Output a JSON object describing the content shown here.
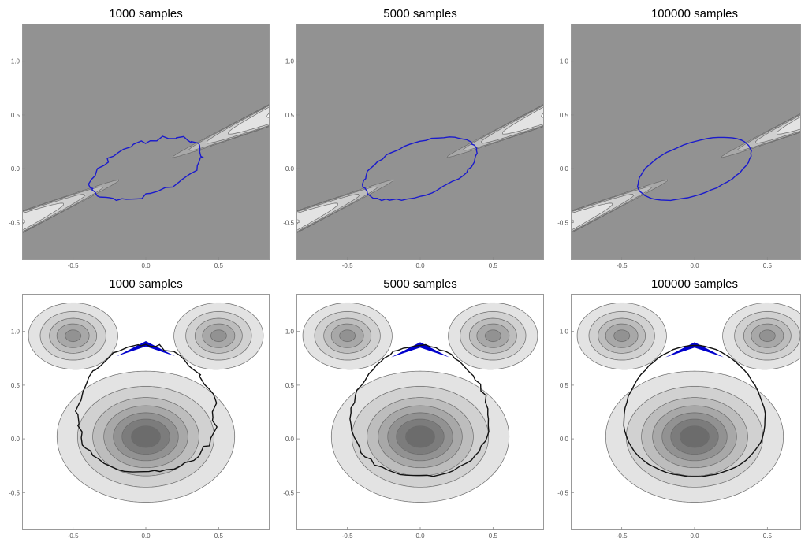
{
  "chart_data": [
    {
      "type": "contour",
      "title": "1000 samples",
      "distribution": "correlated-gaussian",
      "xlim": [
        -0.85,
        0.85
      ],
      "ylim": [
        -0.85,
        1.35
      ],
      "x_ticks": [
        -0.5,
        0.0,
        0.5
      ],
      "x_tick_labels": [
        "-0.5",
        "0.0",
        "0.5"
      ],
      "y_ticks": [
        -0.5,
        0.0,
        0.5,
        1.0
      ],
      "y_tick_labels": [
        "-0.5",
        "0.0",
        "0.5",
        "1.0"
      ],
      "contour_levels": 5,
      "curve": {
        "type": "ellipse",
        "cx": 0.0,
        "cy": 0.0,
        "rx": 0.42,
        "ry": 0.23,
        "angle_deg": 30,
        "noise": 0.018
      },
      "curve_color": "#1a1acc",
      "fill_color": "#0000cc"
    },
    {
      "type": "contour",
      "title": "5000 samples",
      "distribution": "correlated-gaussian",
      "xlim": [
        -0.85,
        0.85
      ],
      "ylim": [
        -0.85,
        1.35
      ],
      "x_ticks": [
        -0.5,
        0.0,
        0.5
      ],
      "x_tick_labels": [
        "-0.5",
        "0.0",
        "0.5"
      ],
      "y_ticks": [
        -0.5,
        0.0,
        0.5,
        1.0
      ],
      "y_tick_labels": [
        "-0.5",
        "0.0",
        "0.5",
        "1.0"
      ],
      "contour_levels": 5,
      "curve": {
        "type": "ellipse",
        "cx": 0.0,
        "cy": 0.0,
        "rx": 0.43,
        "ry": 0.23,
        "angle_deg": 30,
        "noise": 0.009
      },
      "curve_color": "#1a1acc",
      "fill_color": "#0000cc"
    },
    {
      "type": "contour",
      "title": "100000 samples",
      "distribution": "correlated-gaussian",
      "xlim": [
        -0.85,
        0.85
      ],
      "ylim": [
        -0.85,
        1.35
      ],
      "x_ticks": [
        -0.5,
        0.0,
        0.5
      ],
      "x_tick_labels": [
        "-0.5",
        "0.0",
        "0.5"
      ],
      "y_ticks": [
        -0.5,
        0.0,
        0.5,
        1.0
      ],
      "y_tick_labels": [
        "-0.5",
        "0.0",
        "0.5",
        "1.0"
      ],
      "contour_levels": 5,
      "curve": {
        "type": "ellipse",
        "cx": 0.0,
        "cy": 0.0,
        "rx": 0.43,
        "ry": 0.23,
        "angle_deg": 30,
        "noise": 0.003
      },
      "curve_color": "#1a1acc",
      "fill_color": "#0000cc"
    },
    {
      "type": "contour",
      "title": "1000 samples",
      "distribution": "bear-shaped-mixture",
      "xlim": [
        -0.85,
        0.85
      ],
      "ylim": [
        -0.85,
        1.35
      ],
      "x_ticks": [
        -0.5,
        0.0,
        0.5
      ],
      "x_tick_labels": [
        "-0.5",
        "0.0",
        "0.5"
      ],
      "y_ticks": [
        -0.5,
        0.0,
        0.5,
        1.0
      ],
      "y_tick_labels": [
        "-0.5",
        "0.0",
        "0.5",
        "1.0"
      ],
      "contour_levels": 7,
      "curve": {
        "type": "heart",
        "cusp": [
          0.0,
          0.88
        ],
        "bottom": [
          0.0,
          -0.31
        ],
        "half_width": 0.47,
        "noise": 0.022
      },
      "curve_color": "#111111",
      "fill_color": "#0000cc"
    },
    {
      "type": "contour",
      "title": "5000 samples",
      "distribution": "bear-shaped-mixture",
      "xlim": [
        -0.85,
        0.85
      ],
      "ylim": [
        -0.85,
        1.35
      ],
      "x_ticks": [
        -0.5,
        0.0,
        0.5
      ],
      "x_tick_labels": [
        "-0.5",
        "0.0",
        "0.5"
      ],
      "y_ticks": [
        -0.5,
        0.0,
        0.5,
        1.0
      ],
      "y_tick_labels": [
        "-0.5",
        "0.0",
        "0.5",
        "1.0"
      ],
      "contour_levels": 7,
      "curve": {
        "type": "heart",
        "cusp": [
          0.0,
          0.87
        ],
        "bottom": [
          0.0,
          -0.35
        ],
        "half_width": 0.47,
        "noise": 0.01
      },
      "curve_color": "#111111",
      "fill_color": "#0000cc"
    },
    {
      "type": "contour",
      "title": "100000 samples",
      "distribution": "bear-shaped-mixture",
      "xlim": [
        -0.85,
        0.85
      ],
      "ylim": [
        -0.85,
        1.35
      ],
      "x_ticks": [
        -0.5,
        0.0,
        0.5
      ],
      "x_tick_labels": [
        "-0.5",
        "0.0",
        "0.5"
      ],
      "y_ticks": [
        -0.5,
        0.0,
        0.5,
        1.0
      ],
      "y_tick_labels": [
        "-0.5",
        "0.0",
        "0.5",
        "1.0"
      ],
      "contour_levels": 7,
      "curve": {
        "type": "heart",
        "cusp": [
          0.0,
          0.87
        ],
        "bottom": [
          0.0,
          -0.35
        ],
        "half_width": 0.48,
        "noise": 0.003
      },
      "curve_color": "#111111",
      "fill_color": "#0000cc"
    }
  ]
}
